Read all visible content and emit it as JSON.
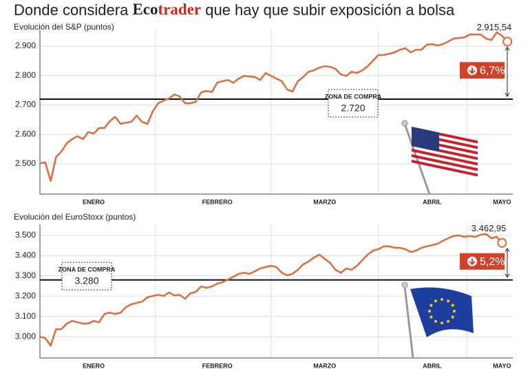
{
  "header": {
    "before": "Donde considera",
    "brand_a": "Eco",
    "brand_b": "trader",
    "after": "que hay que subir exposición a bolsa"
  },
  "chart_data": [
    {
      "type": "line",
      "title": "Evolución del S&P (puntos)",
      "color": "#dd6b3d",
      "values": [
        2502,
        2505,
        2442,
        2523,
        2542,
        2570,
        2584,
        2594,
        2584,
        2608,
        2603,
        2622,
        2622,
        2645,
        2660,
        2636,
        2640,
        2643,
        2664,
        2643,
        2636,
        2678,
        2706,
        2715,
        2722,
        2736,
        2729,
        2706,
        2706,
        2711,
        2743,
        2748,
        2744,
        2776,
        2781,
        2785,
        2776,
        2790,
        2799,
        2797,
        2795,
        2785,
        2809,
        2799,
        2790,
        2781,
        2753,
        2746,
        2781,
        2795,
        2813,
        2818,
        2827,
        2832,
        2830,
        2823,
        2804,
        2799,
        2813,
        2809,
        2818,
        2832,
        2851,
        2870,
        2870,
        2874,
        2879,
        2888,
        2893,
        2879,
        2888,
        2888,
        2905,
        2907,
        2902,
        2907,
        2916,
        2926,
        2928,
        2930,
        2940,
        2940,
        2940,
        2926,
        2921,
        2947,
        2935,
        2915.54
      ],
      "end_label": "2.915,54",
      "xlim": [
        0,
        88
      ],
      "xticks": [
        {
          "value": 10,
          "label": "ENERO"
        },
        {
          "value": 33,
          "label": "FEBRERO"
        },
        {
          "value": 53,
          "label": "MARZO"
        },
        {
          "value": 73,
          "label": "ABRIL"
        },
        {
          "value": 86,
          "label": "MAYO"
        }
      ],
      "ylim": [
        2397,
        2954
      ],
      "yticks": [
        {
          "value": 2500,
          "label": "2.500"
        },
        {
          "value": 2600,
          "label": "2.600"
        },
        {
          "value": 2700,
          "label": "2.700"
        },
        {
          "value": 2800,
          "label": "2.800"
        },
        {
          "value": 2900,
          "label": "2.900"
        }
      ],
      "grid": true,
      "reference": {
        "label": "ZONA DE COMPRA",
        "value": 2720,
        "value_label": "2.720"
      },
      "change": {
        "value": 6.7,
        "label": "6,7%"
      }
    },
    {
      "type": "line",
      "title": "Evolución del EuroStoxx (puntos)",
      "color": "#dd6b3d",
      "values": [
        3000,
        2993,
        2956,
        3037,
        3037,
        3065,
        3078,
        3071,
        3065,
        3065,
        3078,
        3071,
        3112,
        3119,
        3112,
        3119,
        3146,
        3160,
        3167,
        3173,
        3194,
        3201,
        3207,
        3201,
        3218,
        3204,
        3207,
        3187,
        3214,
        3221,
        3248,
        3241,
        3248,
        3262,
        3269,
        3282,
        3296,
        3310,
        3316,
        3310,
        3323,
        3337,
        3344,
        3350,
        3344,
        3316,
        3303,
        3310,
        3330,
        3357,
        3371,
        3391,
        3405,
        3384,
        3364,
        3330,
        3316,
        3337,
        3330,
        3350,
        3378,
        3405,
        3425,
        3432,
        3446,
        3446,
        3439,
        3439,
        3432,
        3418,
        3425,
        3439,
        3446,
        3452,
        3459,
        3473,
        3486,
        3497,
        3500,
        3493,
        3497,
        3493,
        3503,
        3507,
        3486,
        3493,
        3462.95
      ],
      "end_label": "3.462,95",
      "xlim": [
        0,
        88
      ],
      "xticks": [
        {
          "value": 10,
          "label": "ENERO"
        },
        {
          "value": 33,
          "label": "FEBRERO"
        },
        {
          "value": 53,
          "label": "MARZO"
        },
        {
          "value": 73,
          "label": "ABRIL"
        },
        {
          "value": 86,
          "label": "MAYO"
        }
      ],
      "ylim": [
        2895,
        3554
      ],
      "yticks": [
        {
          "value": 3000,
          "label": "3.000"
        },
        {
          "value": 3100,
          "label": "3.100"
        },
        {
          "value": 3200,
          "label": "3.200"
        },
        {
          "value": 3300,
          "label": "3.300"
        },
        {
          "value": 3400,
          "label": "3.400"
        },
        {
          "value": 3500,
          "label": "3.500"
        }
      ],
      "grid": true,
      "reference": {
        "label": "ZONA DE COMPRA",
        "value": 3280,
        "value_label": "3.280"
      },
      "change": {
        "value": 5.2,
        "label": "5,2%"
      }
    }
  ]
}
